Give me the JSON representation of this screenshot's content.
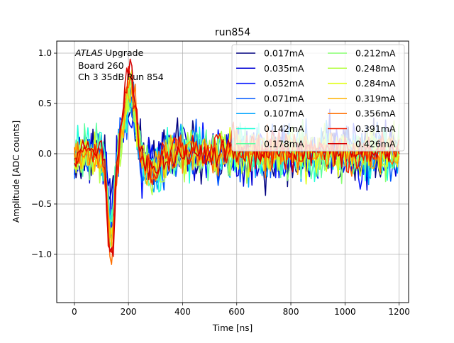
{
  "chart_data": {
    "type": "line",
    "title": "run854",
    "xlabel": "Time [ns]",
    "ylabel": "Amplitude [ADC counts]",
    "xlim": [
      -65,
      1235
    ],
    "ylim": [
      -1.48,
      1.12
    ],
    "xticks": [
      0,
      200,
      400,
      600,
      800,
      1000,
      1200
    ],
    "xtick_labels": [
      "0",
      "200",
      "400",
      "600",
      "800",
      "1000",
      "1200"
    ],
    "yticks": [
      -1.0,
      -0.5,
      0.0,
      0.5,
      1.0
    ],
    "ytick_labels": [
      "−1.0",
      "−0.5",
      "0.0",
      "0.5",
      "1.0"
    ],
    "grid": true,
    "legend_position": "top-right",
    "legend_columns": 2,
    "annotation": {
      "line1_italic": "ATLAS",
      "line1_rest": " Upgrade",
      "line2": "Board 260",
      "line3": "Ch 3 35dB  Run 854"
    },
    "x_sampling": {
      "start": 0,
      "stop": 1200,
      "step": 6.25
    },
    "series": [
      {
        "name": "0.017mA",
        "color": "#00007f",
        "noise": 0.26,
        "offset": 0.0,
        "pulse_amp": 0.4
      },
      {
        "name": "0.035mA",
        "color": "#0000d4",
        "noise": 0.27,
        "offset": 0.0,
        "pulse_amp": 0.43
      },
      {
        "name": "0.052mA",
        "color": "#0010ff",
        "noise": 0.26,
        "offset": 0.0,
        "pulse_amp": 0.46
      },
      {
        "name": "0.071mA",
        "color": "#0058ff",
        "noise": 0.26,
        "offset": 0.0,
        "pulse_amp": 0.49
      },
      {
        "name": "0.107mA",
        "color": "#00a4ff",
        "noise": 0.25,
        "offset": 0.0,
        "pulse_amp": 0.53
      },
      {
        "name": "0.142mA",
        "color": "#1fffd7",
        "noise": 0.24,
        "offset": 0.0,
        "pulse_amp": 0.57
      },
      {
        "name": "0.178mA",
        "color": "#5effa0",
        "noise": 0.23,
        "offset": 0.0,
        "pulse_amp": 0.61
      },
      {
        "name": "0.212mA",
        "color": "#87ff70",
        "noise": 0.22,
        "offset": 0.0,
        "pulse_amp": 0.66
      },
      {
        "name": "0.248mA",
        "color": "#b4ff43",
        "noise": 0.21,
        "offset": 0.01,
        "pulse_amp": 0.7
      },
      {
        "name": "0.284mA",
        "color": "#e1ff16",
        "noise": 0.2,
        "offset": 0.01,
        "pulse_amp": 0.74
      },
      {
        "name": "0.319mA",
        "color": "#ffb200",
        "noise": 0.19,
        "offset": 0.02,
        "pulse_amp": 0.78
      },
      {
        "name": "0.356mA",
        "color": "#ff6f00",
        "noise": 0.18,
        "offset": 0.02,
        "pulse_amp": 0.82
      },
      {
        "name": "0.391mA",
        "color": "#f11c00",
        "noise": 0.17,
        "offset": 0.03,
        "pulse_amp": 0.86
      },
      {
        "name": "0.426mA",
        "color": "#d40000",
        "noise": 0.16,
        "offset": 0.03,
        "pulse_amp": 0.9
      }
    ]
  }
}
